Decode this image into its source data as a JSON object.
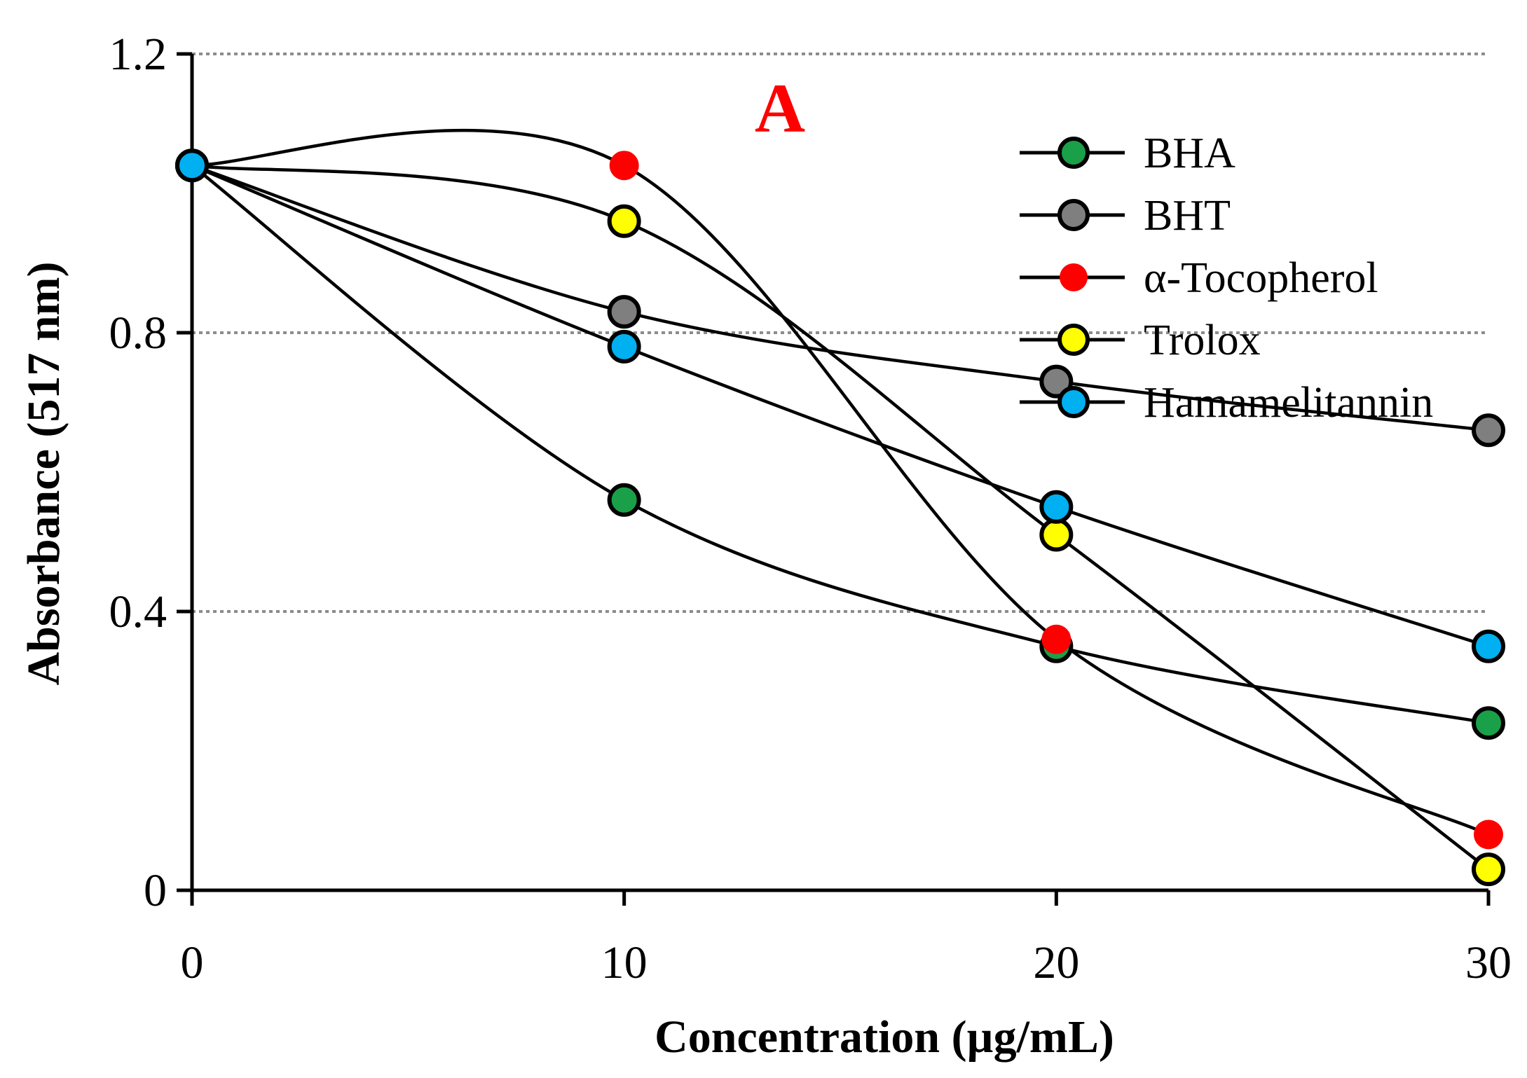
{
  "chart_data": {
    "type": "line",
    "panel_label": "A",
    "xlabel": "Concentration  (µg/mL)",
    "ylabel": "Absorbance (517 nm)",
    "x": [
      0,
      10,
      20,
      30
    ],
    "x_tick_labels": [
      "0",
      "10",
      "20",
      "30"
    ],
    "y_tick_values": [
      0,
      0.4,
      0.8,
      1.2
    ],
    "y_tick_labels": [
      "0",
      "0.4",
      "0.8",
      "1.2"
    ],
    "xlim": [
      0,
      30
    ],
    "ylim": [
      0,
      1.2
    ],
    "grid": "horizontal dotted",
    "legend_position": "top-right",
    "series": [
      {
        "name": "BHA",
        "color": "#1aa049",
        "values": [
          1.04,
          0.56,
          0.35,
          0.24
        ]
      },
      {
        "name": "BHT",
        "color": "#7f7f7f",
        "values": [
          1.04,
          0.83,
          0.73,
          0.66
        ]
      },
      {
        "name": "α-Tocopherol",
        "color": "#ff0000",
        "values": [
          1.04,
          1.04,
          0.36,
          0.08
        ]
      },
      {
        "name": "Trolox",
        "color": "#ffff00",
        "values": [
          1.04,
          0.96,
          0.51,
          0.03
        ]
      },
      {
        "name": "Hamamelitannin",
        "color": "#00b0f0",
        "values": [
          1.04,
          0.78,
          0.55,
          0.35
        ]
      }
    ]
  }
}
